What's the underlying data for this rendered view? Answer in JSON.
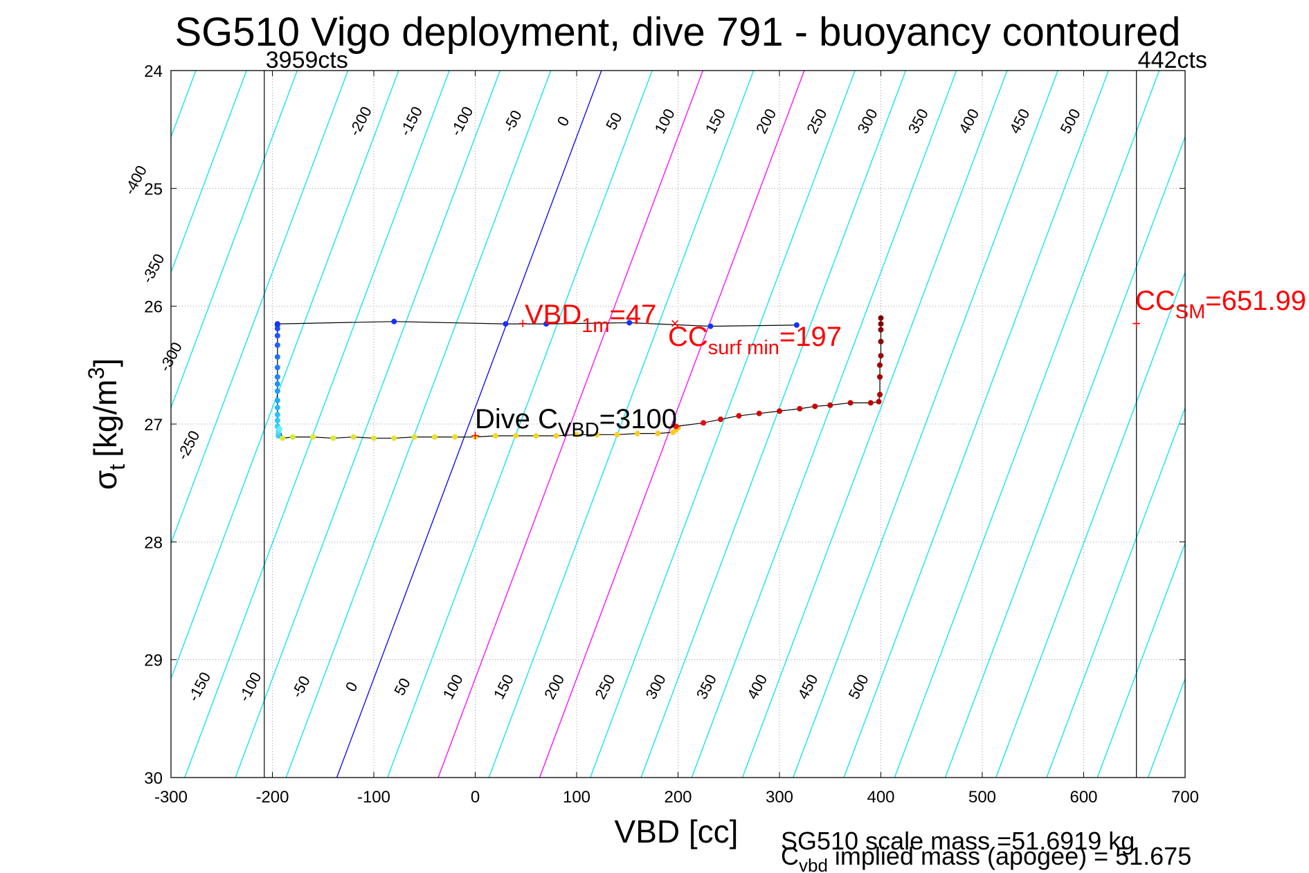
{
  "chart_data": {
    "type": "scatter",
    "title": "SG510 Vigo deployment, dive 791 - buoyancy contoured",
    "xlabel": "VBD [cc]",
    "ylabel_sym": "σ",
    "ylabel_sub": "t",
    "ylabel_unit": "[kg/m",
    "ylabel_sup": "3",
    "ylabel_close": "]",
    "xlim": [
      -300,
      700
    ],
    "ylim": [
      24,
      30
    ],
    "y_reversed": true,
    "grid": "dotted",
    "xticks": [
      -300,
      -200,
      -100,
      0,
      100,
      200,
      300,
      400,
      500,
      600,
      700
    ],
    "yticks": [
      24,
      25,
      26,
      27,
      28,
      29,
      30
    ],
    "colors": {
      "contour": "#00e5ee",
      "zero_line": "#0000ff",
      "magenta_lines": "#ff00ff",
      "annotation": "#ff0000",
      "trace": "#000000"
    },
    "buoyancy_contours": {
      "slope_cc_per_sigma": -43.5,
      "vbd_at_sigma_27_for_zero": -6,
      "levels": [
        -400,
        -350,
        -300,
        -250,
        -200,
        -150,
        -100,
        -50,
        0,
        50,
        100,
        150,
        200,
        250,
        300,
        350,
        400,
        450,
        500
      ],
      "zero_level": 0,
      "magenta_levels": [
        100,
        200
      ],
      "top_labels": [
        "-200",
        "-150",
        "-100",
        "-50",
        "0",
        "50",
        "100",
        "150",
        "200",
        "250",
        "300",
        "350",
        "400",
        "450",
        "500"
      ],
      "left_labels": [
        "-400",
        "-350",
        "-300",
        "-250"
      ],
      "bottom_labels": [
        "-150",
        "-100",
        "-50",
        "0",
        "50",
        "100",
        "150",
        "200",
        "250",
        "300",
        "350",
        "400",
        "450",
        "500"
      ]
    },
    "vertical_limits": [
      {
        "x": -208,
        "label": "3959cts"
      },
      {
        "x": 652,
        "label": "442cts"
      }
    ],
    "dive_trace": {
      "name": "dive",
      "x": [
        -194,
        -194,
        -194,
        -193,
        -190,
        -180,
        -160,
        -140,
        -120,
        -100,
        -80,
        -60,
        -40,
        -20,
        0,
        20,
        40,
        60,
        80,
        100,
        120,
        140,
        160,
        180,
        195,
        198,
        200
      ],
      "y": [
        27.1,
        27.08,
        27.06,
        27.04,
        27.12,
        27.11,
        27.11,
        27.12,
        27.11,
        27.12,
        27.12,
        27.11,
        27.11,
        27.11,
        27.11,
        27.1,
        27.1,
        27.1,
        27.1,
        27.09,
        27.09,
        27.09,
        27.08,
        27.08,
        27.07,
        27.05,
        27.03
      ],
      "colors": [
        "#33ccff",
        "#40d0ff",
        "#55e0ff",
        "#66eeff",
        "#dde830",
        "#d8e82f",
        "#e0e830",
        "#e0e832",
        "#e2e431",
        "#e4e430",
        "#e6e22f",
        "#e8e02e",
        "#ece02d",
        "#eedd2c",
        "#f0dc2b",
        "#f0da2a",
        "#f2d82a",
        "#f2d629",
        "#f4d428",
        "#f4d228",
        "#f6d027",
        "#f6ce26",
        "#f8cc25",
        "#f8ca24",
        "#facc22",
        "#fac820",
        "#fcc61e"
      ]
    },
    "descent_vertical": {
      "x": [
        -195,
        -195,
        -195,
        -195,
        -195,
        -195,
        -195,
        -195,
        -195,
        -195,
        -195,
        -195,
        -195,
        -195
      ],
      "y": [
        26.16,
        26.19,
        26.25,
        26.33,
        26.43,
        26.52,
        26.6,
        26.66,
        26.72,
        26.8,
        26.86,
        26.92,
        26.97,
        27.02
      ],
      "colors": [
        "#1e3cff",
        "#1e48ff",
        "#1e55ff",
        "#1e62ff",
        "#1e70ff",
        "#1e7cff",
        "#1e88ff",
        "#1e94ff",
        "#20a0ff",
        "#22acff",
        "#24b8ff",
        "#26c4ff",
        "#28ccff",
        "#2ad4ff"
      ]
    },
    "surface_trace": {
      "x": [
        -195,
        -80,
        30,
        70,
        152,
        232,
        317
      ],
      "y": [
        26.15,
        26.13,
        26.15,
        26.15,
        26.14,
        26.17,
        26.16
      ],
      "colors": [
        "#1530ff",
        "#1530ff",
        "#1530ff",
        "#1530ff",
        "#1530ff",
        "#1530ff",
        "#1530ff"
      ]
    },
    "climb_trace": {
      "x": [
        198,
        225,
        242,
        260,
        280,
        300,
        320,
        335,
        350,
        370,
        390,
        398,
        399,
        399,
        399,
        400,
        400,
        400,
        400,
        400
      ],
      "y": [
        27.02,
        26.99,
        26.96,
        26.93,
        26.91,
        26.89,
        26.87,
        26.85,
        26.84,
        26.82,
        26.82,
        26.81,
        26.75,
        26.6,
        26.5,
        26.42,
        26.3,
        26.2,
        26.15,
        26.1
      ],
      "colors": [
        "#ff1010",
        "#ee0808",
        "#e00000",
        "#dd0000",
        "#d80000",
        "#d30000",
        "#cf0000",
        "#cc0000",
        "#c80000",
        "#c40000",
        "#c00000",
        "#b80000",
        "#b00000",
        "#a80000",
        "#a00000",
        "#980000",
        "#900000",
        "#880000",
        "#800000",
        "#780000"
      ]
    },
    "annotations": {
      "vbd1m": {
        "x": 47,
        "y": 26.15,
        "pre": "VBD",
        "sub": "1m",
        "post": "=47",
        "marker": "+"
      },
      "ccsurf": {
        "x": 197,
        "y": 26.15,
        "pre": "CC",
        "sub": "surf min",
        "post": "=197",
        "marker": "×"
      },
      "ccsm": {
        "x": 652,
        "y": 26.15,
        "pre": "CC",
        "sub": "SM",
        "post": "=651.99",
        "marker": "+"
      },
      "divec": {
        "x": 0,
        "y": 27.1,
        "pre": "Dive C",
        "sub": "VBD",
        "post": "=3100",
        "marker": "+"
      }
    },
    "footer": {
      "line1": "SG510 scale mass =51.6919 kg",
      "line2_pre": "C",
      "line2_sub": "vbd",
      "line2_post": " implied mass (apogee) = 51.675"
    }
  }
}
